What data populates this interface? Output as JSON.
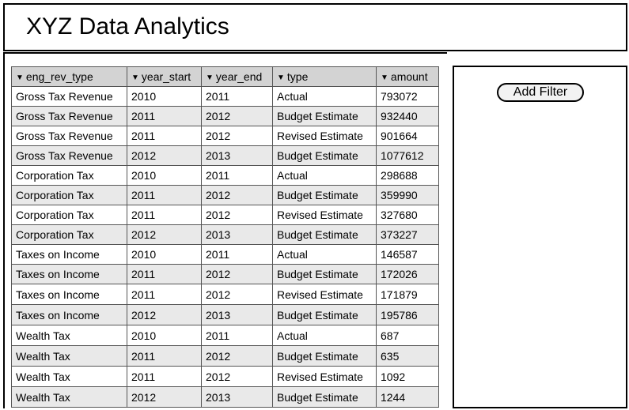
{
  "header": {
    "title": "XYZ Data Analytics"
  },
  "table": {
    "columns": [
      {
        "label": "eng_rev_type",
        "icon": "sort-down-triangle"
      },
      {
        "label": "year_start",
        "icon": "sort-down-triangle"
      },
      {
        "label": "year_end",
        "icon": "sort-down-triangle"
      },
      {
        "label": "type",
        "icon": "sort-down-triangle"
      },
      {
        "label": "amount",
        "icon": "sort-down-triangle"
      }
    ],
    "rows": [
      [
        "Gross Tax Revenue",
        "2010",
        "2011",
        "Actual",
        "793072"
      ],
      [
        "Gross Tax Revenue",
        "2011",
        "2012",
        "Budget Estimate",
        "932440"
      ],
      [
        "Gross Tax Revenue",
        "2011",
        "2012",
        "Revised Estimate",
        "901664"
      ],
      [
        "Gross Tax Revenue",
        "2012",
        "2013",
        "Budget Estimate",
        "1077612"
      ],
      [
        "Corporation Tax",
        "2010",
        "2011",
        "Actual",
        "298688"
      ],
      [
        "Corporation Tax",
        "2011",
        "2012",
        "Budget Estimate",
        "359990"
      ],
      [
        "Corporation Tax",
        "2011",
        "2012",
        "Revised Estimate",
        "327680"
      ],
      [
        "Corporation Tax",
        "2012",
        "2013",
        "Budget Estimate",
        "373227"
      ],
      [
        "Taxes on Income",
        "2010",
        "2011",
        "Actual",
        "146587"
      ],
      [
        "Taxes on Income",
        "2011",
        "2012",
        "Budget Estimate",
        "172026"
      ],
      [
        "Taxes on Income",
        "2011",
        "2012",
        "Revised Estimate",
        "171879"
      ],
      [
        "Taxes on Income",
        "2012",
        "2013",
        "Budget Estimate",
        "195786"
      ],
      [
        "Wealth Tax",
        "2010",
        "2011",
        "Actual",
        "687"
      ],
      [
        "Wealth Tax",
        "2011",
        "2012",
        "Budget Estimate",
        "635"
      ],
      [
        "Wealth Tax",
        "2011",
        "2012",
        "Revised Estimate",
        "1092"
      ],
      [
        "Wealth Tax",
        "2012",
        "2013",
        "Budget Estimate",
        "1244"
      ]
    ]
  },
  "filter_panel": {
    "add_filter_label": "Add Filter"
  },
  "colors": {
    "header_bg": "#d3d3d3",
    "row_alt_bg": "#e9e9e9",
    "border": "#000000"
  }
}
